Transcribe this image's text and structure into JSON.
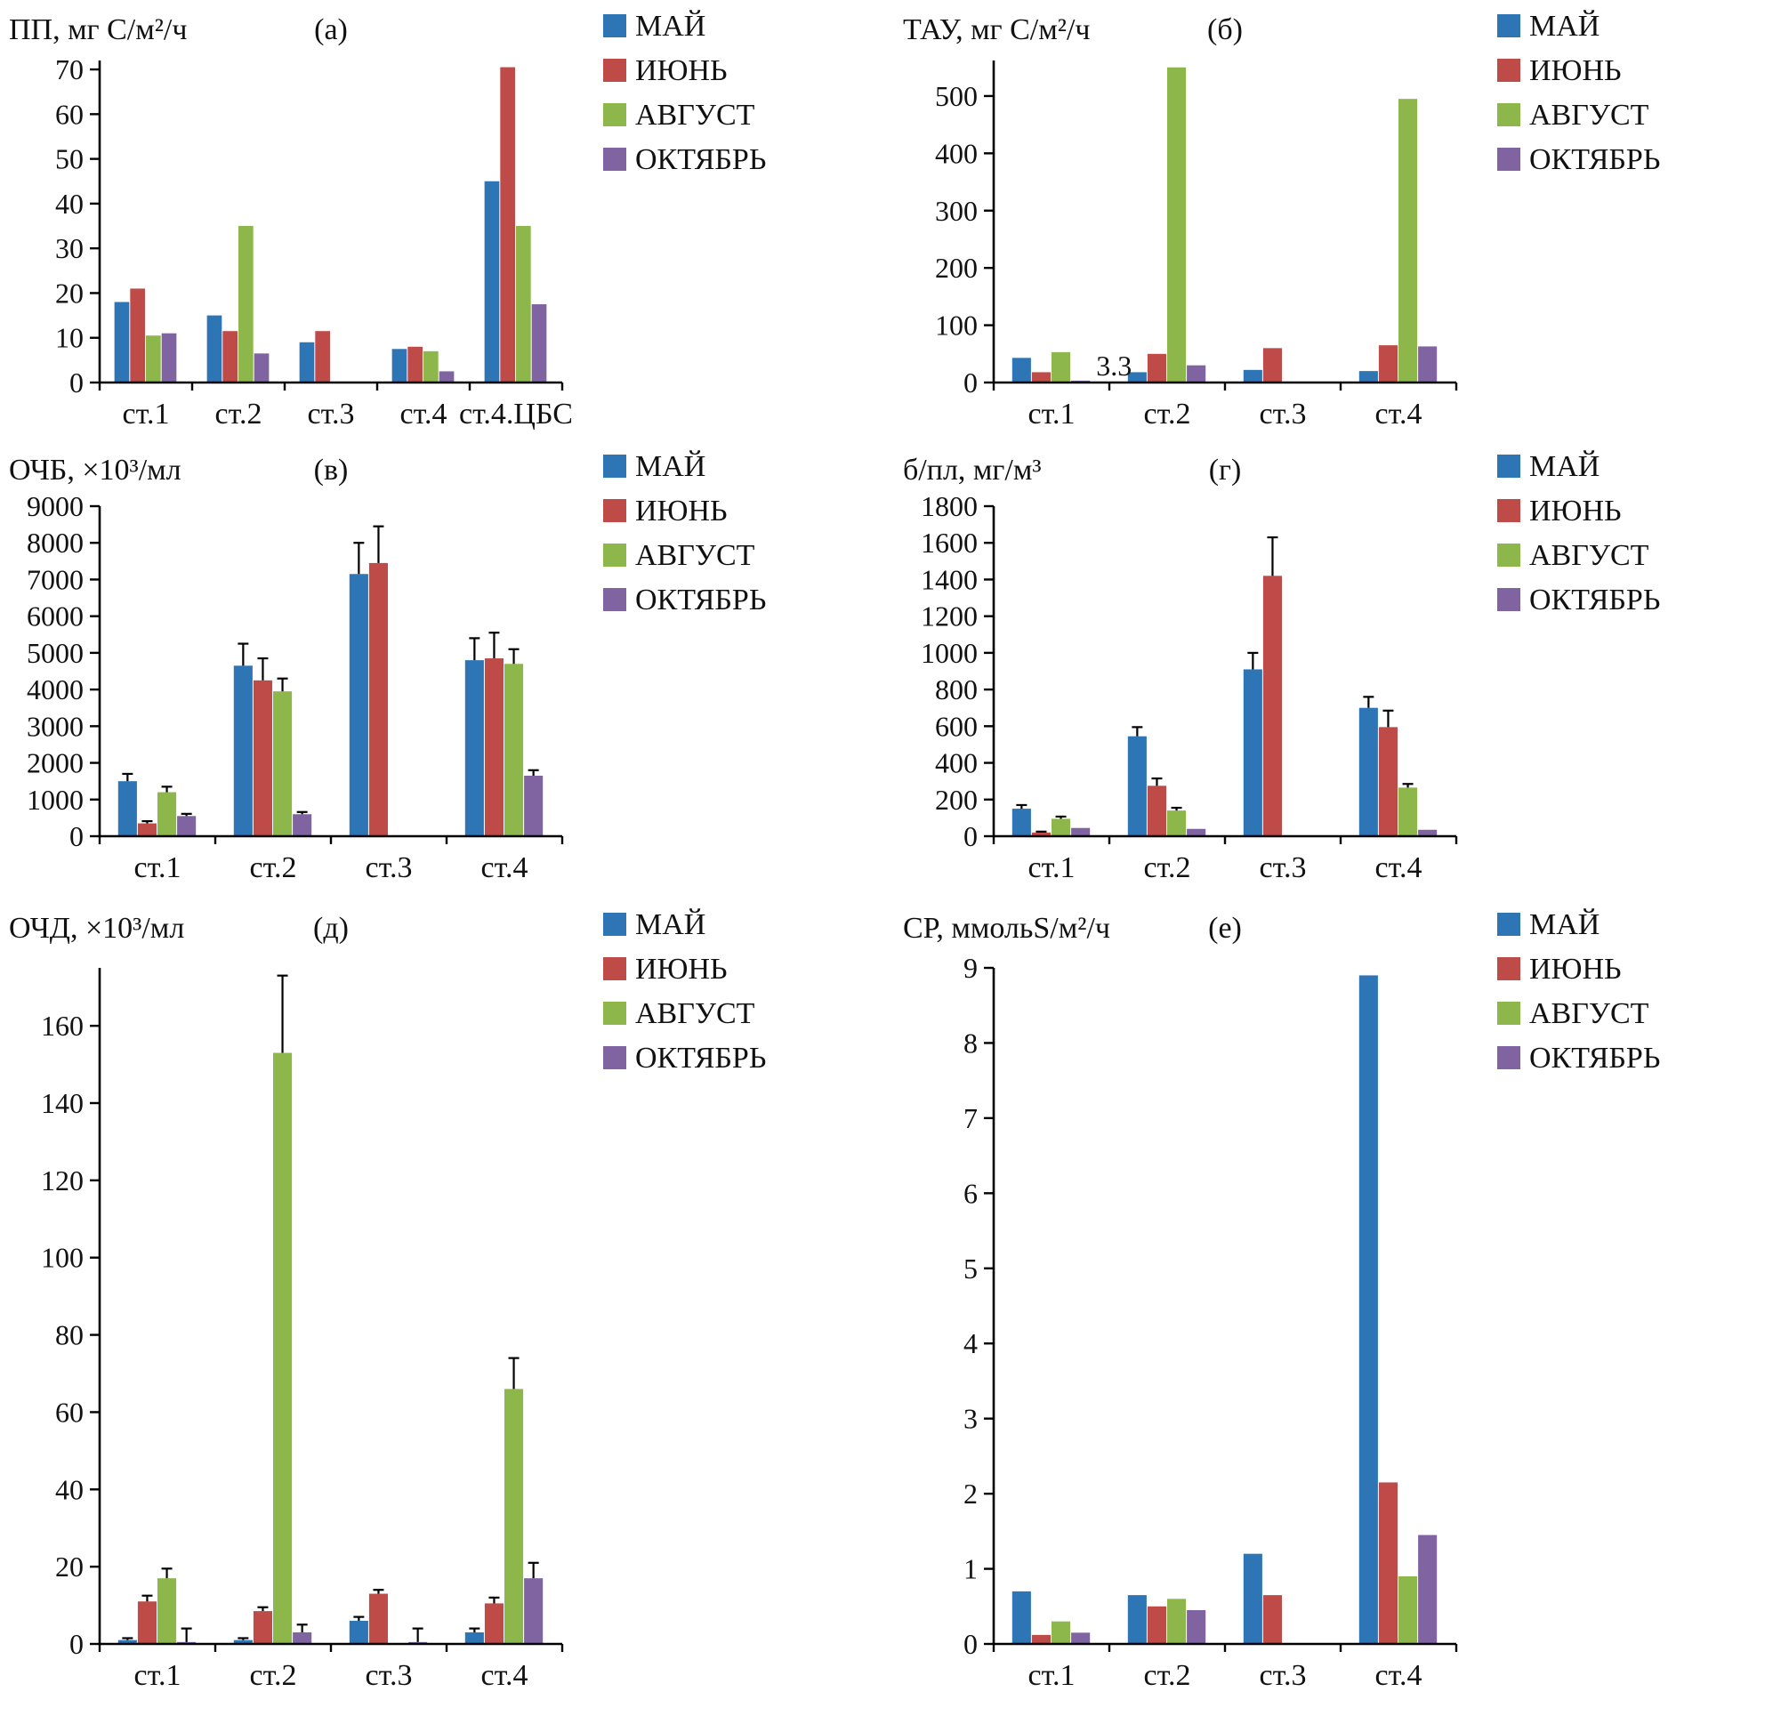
{
  "page": {
    "background": "#ffffff"
  },
  "colors": {
    "series": [
      "#2E75B6",
      "#BE4B48",
      "#8DB74A",
      "#8064A2"
    ],
    "axis": "#000000",
    "error_bar": "#000000"
  },
  "legend_labels": [
    "МАЙ",
    "ИЮНЬ",
    "АВГУСТ",
    "ОКТЯБРЬ"
  ],
  "chart_data": [
    {
      "id": "a",
      "type": "bar",
      "panel_label": "(а)",
      "title": "ПП, мг С/м²/ч",
      "categories": [
        "ст.1",
        "ст.2",
        "ст.3",
        "ст.4",
        "ст.4.ЦБС"
      ],
      "ylim": [
        0,
        72
      ],
      "ytick_step": 10,
      "ytick_max": 70,
      "legend_position": "top-right",
      "series": [
        {
          "name": "МАЙ",
          "values": [
            18,
            15,
            9,
            7.5,
            45
          ]
        },
        {
          "name": "ИЮНЬ",
          "values": [
            21,
            11.5,
            11.5,
            8,
            70.5
          ]
        },
        {
          "name": "АВГУСТ",
          "values": [
            10.5,
            35,
            0,
            7,
            35
          ]
        },
        {
          "name": "ОКТЯБРЬ",
          "values": [
            11,
            6.5,
            0,
            2.5,
            17.5
          ]
        }
      ]
    },
    {
      "id": "b",
      "type": "bar",
      "panel_label": "(б)",
      "title": "ТАУ, мг С/м²/ч",
      "categories": [
        "ст.1",
        "ст.2",
        "ст.3",
        "ст.4"
      ],
      "ylim": [
        0,
        562
      ],
      "ytick_step": 100,
      "ytick_max": 500,
      "legend_position": "top-right",
      "series": [
        {
          "name": "МАЙ",
          "values": [
            43,
            18,
            22,
            20
          ]
        },
        {
          "name": "ИЮНЬ",
          "values": [
            18,
            50,
            60,
            65
          ]
        },
        {
          "name": "АВГУСТ",
          "values": [
            53,
            550,
            0,
            495
          ]
        },
        {
          "name": "ОКТЯБРЬ",
          "values": [
            3.3,
            30,
            0,
            63
          ]
        }
      ],
      "annotations": [
        {
          "text": "3.3",
          "category": 0,
          "series": 3
        }
      ]
    },
    {
      "id": "v",
      "type": "bar",
      "panel_label": "(в)",
      "title": "ОЧБ, ×10³/мл",
      "categories": [
        "ст.1",
        "ст.2",
        "ст.3",
        "ст.4"
      ],
      "ylim": [
        0,
        9000
      ],
      "ytick_step": 1000,
      "ytick_max": 9000,
      "legend_position": "top-right",
      "series": [
        {
          "name": "МАЙ",
          "values": [
            1500,
            4650,
            7150,
            4800
          ],
          "errors": [
            200,
            600,
            850,
            600
          ]
        },
        {
          "name": "ИЮНЬ",
          "values": [
            350,
            4250,
            7450,
            4850
          ],
          "errors": [
            60,
            600,
            1000,
            700
          ]
        },
        {
          "name": "АВГУСТ",
          "values": [
            1200,
            3950,
            0,
            4700
          ],
          "errors": [
            150,
            350,
            0,
            400
          ]
        },
        {
          "name": "ОКТЯБРЬ",
          "values": [
            550,
            600,
            0,
            1650
          ],
          "errors": [
            60,
            60,
            0,
            150
          ]
        }
      ]
    },
    {
      "id": "g",
      "type": "bar",
      "panel_label": "(г)",
      "title": "б/пл, мг/м³",
      "categories": [
        "ст.1",
        "ст.2",
        "ст.3",
        "ст.4"
      ],
      "ylim": [
        0,
        1800
      ],
      "ytick_step": 200,
      "ytick_max": 1800,
      "legend_position": "top-right",
      "series": [
        {
          "name": "МАЙ",
          "values": [
            150,
            545,
            910,
            700
          ],
          "errors": [
            20,
            50,
            90,
            60
          ]
        },
        {
          "name": "ИЮНЬ",
          "values": [
            20,
            275,
            1420,
            595
          ],
          "errors": [
            5,
            40,
            210,
            90
          ]
        },
        {
          "name": "АВГУСТ",
          "values": [
            95,
            140,
            0,
            265
          ],
          "errors": [
            12,
            15,
            0,
            20
          ]
        },
        {
          "name": "ОКТЯБРЬ",
          "values": [
            45,
            40,
            0,
            35
          ]
        }
      ]
    },
    {
      "id": "d",
      "type": "bar",
      "panel_label": "(д)",
      "title": "ОЧД, ×10³/мл",
      "categories": [
        "ст.1",
        "ст.2",
        "ст.3",
        "ст.4"
      ],
      "ylim": [
        0,
        175
      ],
      "ytick_step": 20,
      "ytick_max": 160,
      "legend_position": "top-right",
      "series": [
        {
          "name": "МАЙ",
          "values": [
            1,
            1,
            6,
            3
          ],
          "errors": [
            0.5,
            0.5,
            1,
            1
          ]
        },
        {
          "name": "ИЮНЬ",
          "values": [
            11,
            8.5,
            13,
            10.5
          ],
          "errors": [
            1.5,
            1,
            1,
            1.5
          ]
        },
        {
          "name": "АВГУСТ",
          "values": [
            17,
            153,
            0,
            66
          ],
          "errors": [
            2.5,
            20,
            0,
            8
          ]
        },
        {
          "name": "ОКТЯБРЬ",
          "values": [
            0.5,
            3,
            0.5,
            17
          ],
          "errors": [
            3.5,
            2,
            3.5,
            4
          ]
        }
      ]
    },
    {
      "id": "e",
      "type": "bar",
      "panel_label": "(е)",
      "title": "СР, ммольS/м²/ч",
      "categories": [
        "ст.1",
        "ст.2",
        "ст.3",
        "ст.4"
      ],
      "ylim": [
        0,
        9
      ],
      "ytick_step": 1,
      "ytick_max": 9,
      "legend_position": "top-right",
      "series": [
        {
          "name": "МАЙ",
          "values": [
            0.7,
            0.65,
            1.2,
            8.9
          ]
        },
        {
          "name": "ИЮНЬ",
          "values": [
            0.12,
            0.5,
            0.65,
            2.15
          ]
        },
        {
          "name": "АВГУСТ",
          "values": [
            0.3,
            0.6,
            0,
            0.9
          ]
        },
        {
          "name": "ОКТЯБРЬ",
          "values": [
            0.15,
            0.45,
            0,
            1.45
          ]
        }
      ]
    }
  ]
}
